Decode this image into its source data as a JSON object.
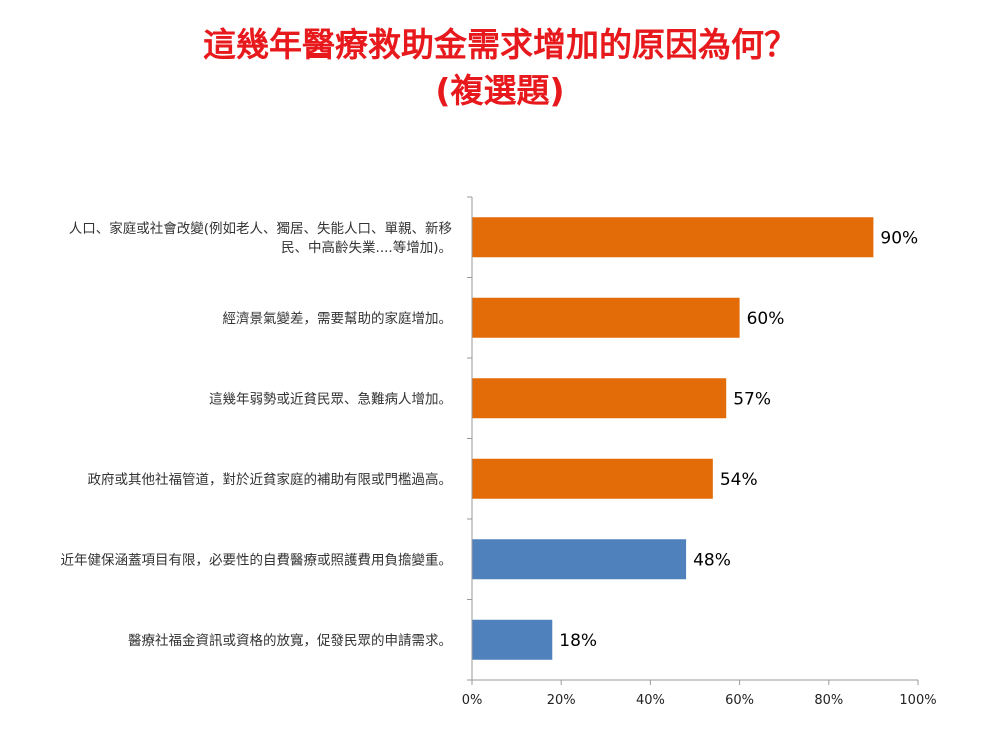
{
  "title": {
    "line1": "這幾年醫療救助金需求增加的原因為何？",
    "line2": "(複選題)"
  },
  "colors": {
    "title": "#e8191c",
    "orange": "#e36c09",
    "blue": "#4f81bd",
    "axis": "#9a9a9a"
  },
  "chart_data": {
    "type": "bar",
    "orientation": "horizontal",
    "title": "這幾年醫療救助金需求增加的原因為何？ (複選題)",
    "categories": [
      [
        "人口、家庭或社會改變(例如老人、獨居、失能人口、單親、新移",
        "民、中高齡失業....等增加)。"
      ],
      [
        "經濟景氣變差，需要幫助的家庭增加。"
      ],
      [
        "這幾年弱勢或近貧民眾、急難病人增加。"
      ],
      [
        "政府或其他社福管道，對於近貧家庭的補助有限或門檻過高。"
      ],
      [
        "近年健保涵蓋項目有限，必要性的自費醫療或照護費用負擔變重。"
      ],
      [
        "醫療社福金資訊或資格的放寬，促發民眾的申請需求。"
      ]
    ],
    "values": [
      90,
      60,
      57,
      54,
      48,
      18
    ],
    "value_labels": [
      "90%",
      "60%",
      "57%",
      "54%",
      "48%",
      "18%"
    ],
    "bar_colors": [
      "orange",
      "orange",
      "orange",
      "orange",
      "blue",
      "blue"
    ],
    "xlim": [
      0,
      100
    ],
    "xticks": [
      0,
      20,
      40,
      60,
      80,
      100
    ],
    "xtick_labels": [
      "0%",
      "20%",
      "40%",
      "60%",
      "80%",
      "100%"
    ],
    "xlabel": "",
    "ylabel": "",
    "grid": false,
    "legend": "none"
  }
}
